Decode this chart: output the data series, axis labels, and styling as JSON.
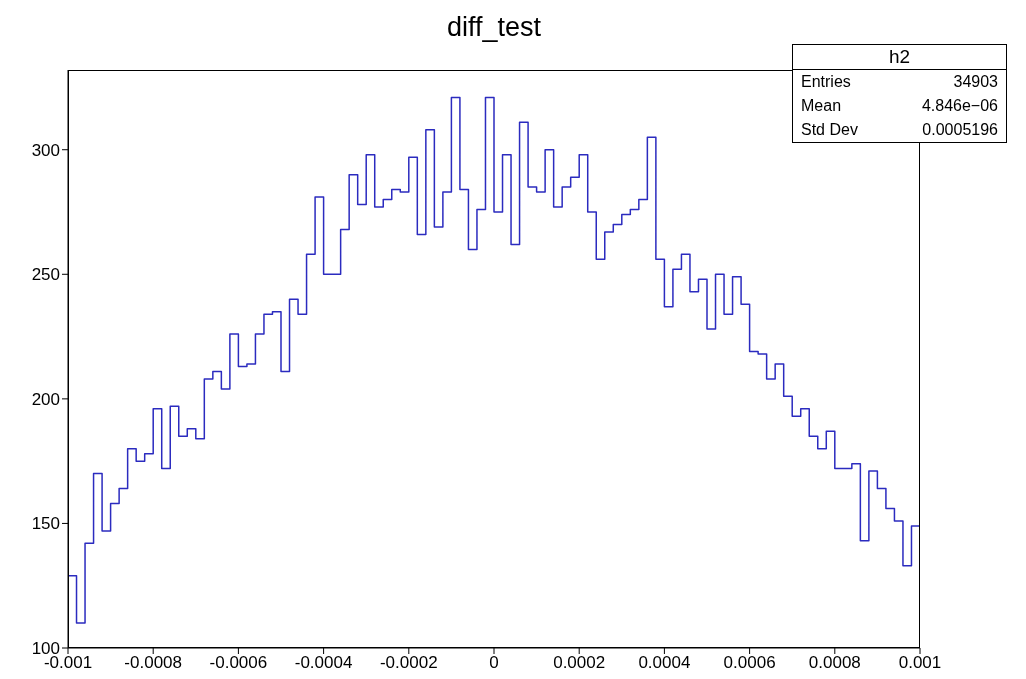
{
  "chart_data": {
    "type": "histogram",
    "title": "diff_test",
    "bins": [
      -0.001,
      -0.00098,
      -0.00096,
      -0.00094,
      -0.00092,
      -0.0009,
      -0.00088,
      -0.00086,
      -0.00084,
      -0.00082,
      -0.0008,
      -0.00078,
      -0.00076,
      -0.00074,
      -0.00072,
      -0.0007,
      -0.00068,
      -0.00066,
      -0.00064,
      -0.00062,
      -0.0006,
      -0.00058,
      -0.00056,
      -0.00054,
      -0.00052,
      -0.0005,
      -0.00048,
      -0.00046,
      -0.00044,
      -0.00042,
      -0.0004,
      -0.00038,
      -0.00036,
      -0.00034,
      -0.00032,
      -0.0003,
      -0.00028,
      -0.00026,
      -0.00024,
      -0.00022,
      -0.0002,
      -0.00018,
      -0.00016,
      -0.00014,
      -0.00012,
      -0.0001,
      -8e-05,
      -6e-05,
      -4e-05,
      -2e-05,
      0,
      2e-05,
      4e-05,
      6e-05,
      8e-05,
      0.0001,
      0.00012,
      0.00014,
      0.00016,
      0.00018,
      0.0002,
      0.00022,
      0.00024,
      0.00026,
      0.00028,
      0.0003,
      0.00032,
      0.00034,
      0.00036,
      0.00038,
      0.0004,
      0.00042,
      0.00044,
      0.00046,
      0.00048,
      0.0005,
      0.00052,
      0.00054,
      0.00056,
      0.00058,
      0.0006,
      0.00062,
      0.00064,
      0.00066,
      0.00068,
      0.0007,
      0.00072,
      0.00074,
      0.00076,
      0.00078,
      0.0008,
      0.00082,
      0.00084,
      0.00086,
      0.00088,
      0.0009,
      0.00092,
      0.00094,
      0.00096,
      0.00098,
      0.001
    ],
    "values": [
      129,
      110,
      142,
      170,
      147,
      158,
      164,
      180,
      175,
      178,
      196,
      172,
      197,
      185,
      188,
      184,
      208,
      211,
      204,
      226,
      213,
      214,
      226,
      234,
      235,
      211,
      240,
      234,
      258,
      281,
      250,
      250,
      268,
      290,
      278,
      298,
      277,
      280,
      284,
      283,
      297,
      266,
      308,
      269,
      283,
      321,
      284,
      260,
      276,
      321,
      275,
      298,
      262,
      311,
      285,
      283,
      300,
      277,
      285,
      289,
      298,
      275,
      256,
      267,
      270,
      274,
      276,
      280,
      305,
      256,
      237,
      252,
      258,
      243,
      248,
      228,
      250,
      234,
      249,
      238,
      219,
      218,
      208,
      214,
      201,
      193,
      196,
      185,
      180,
      187,
      172,
      172,
      174,
      143,
      171,
      164,
      156,
      151,
      133,
      149
    ],
    "color": "#2b2bbf",
    "xlim": [
      -0.001,
      0.001
    ],
    "xticks": [
      -0.001,
      -0.0008,
      -0.0006,
      -0.0004,
      -0.0002,
      0,
      0.0002,
      0.0004,
      0.0006,
      0.0008,
      0.001
    ],
    "ylim": [
      100,
      332
    ],
    "yticks": [
      100,
      150,
      200,
      250,
      300
    ],
    "annotations": [
      "h2",
      "Entries",
      "34903",
      "Mean",
      "4.846e−06",
      "Std Dev",
      "0.0005196"
    ]
  }
}
